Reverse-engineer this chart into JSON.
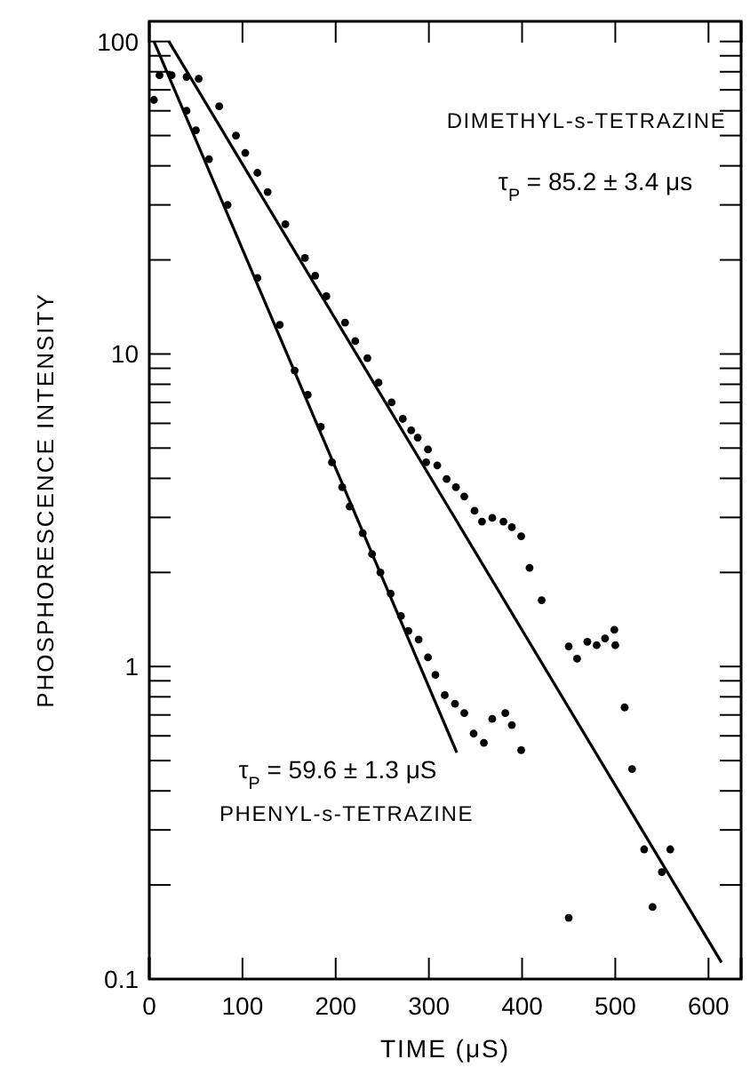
{
  "chart_data": {
    "type": "scatter",
    "xlabel": "TIME  (μS)",
    "ylabel": "PHOSPHORESCENCE INTENSITY",
    "log": "y",
    "grid": false,
    "legend": "top right",
    "marker": "circle",
    "xlim": [
      0,
      635
    ],
    "ylim": [
      0.1,
      116
    ],
    "xticks": [
      0,
      100,
      200,
      300,
      400,
      500,
      600
    ],
    "yticks": [
      {
        "value": 0.1,
        "label": "0.1"
      },
      {
        "value": 0.2,
        "label": null
      },
      {
        "value": 0.3,
        "label": null
      },
      {
        "value": 0.4,
        "label": null
      },
      {
        "value": 0.5,
        "label": null
      },
      {
        "value": 0.6,
        "label": null
      },
      {
        "value": 0.7,
        "label": null
      },
      {
        "value": 0.8,
        "label": null
      },
      {
        "value": 0.9,
        "label": null
      },
      1,
      {
        "value": 2,
        "label": null
      },
      {
        "value": 3,
        "label": null
      },
      {
        "value": 4,
        "label": null
      },
      {
        "value": 5,
        "label": null
      },
      {
        "value": 6,
        "label": null
      },
      {
        "value": 7,
        "label": null
      },
      {
        "value": 8,
        "label": null
      },
      {
        "value": 9,
        "label": null
      },
      10,
      {
        "value": 20,
        "label": null
      },
      {
        "value": 30,
        "label": null
      },
      {
        "value": 40,
        "label": null
      },
      {
        "value": 50,
        "label": null
      },
      {
        "value": 60,
        "label": null
      },
      {
        "value": 70,
        "label": null
      },
      {
        "value": 80,
        "label": null
      },
      {
        "value": 90,
        "label": null
      },
      100
    ],
    "annotations": [
      "τ$_{P}$ = 85.2 ± 3.4 μs",
      "τ$_{P}$ = 59.6 ± 1.3 μS"
    ],
    "series": [
      {
        "name": "DIMETHYL-s-TETRAZINE",
        "color": "#000000",
        "x": [
          11,
          24,
          40,
          53,
          75,
          93,
          103,
          116,
          127,
          146,
          167,
          178,
          190,
          210,
          221,
          234,
          246,
          260,
          272,
          281,
          288,
          297,
          299,
          309,
          319,
          329,
          338,
          349,
          357,
          368,
          380,
          389,
          399,
          408,
          421,
          450,
          459,
          470,
          480,
          489,
          499,
          500,
          510,
          518,
          531,
          540,
          550,
          559,
          450
        ],
        "values": [
          78,
          78,
          77,
          76,
          62,
          50,
          44,
          38,
          33,
          26,
          20.3,
          17.8,
          15.3,
          12.6,
          11,
          9.7,
          8.1,
          7,
          6.2,
          5.7,
          5.4,
          4.5,
          4.95,
          4.4,
          3.98,
          3.75,
          3.5,
          3.15,
          2.91,
          2.99,
          2.91,
          2.79,
          2.61,
          2.07,
          1.63,
          1.16,
          1.06,
          1.2,
          1.17,
          1.23,
          1.31,
          1.17,
          0.74,
          0.47,
          0.26,
          0.17,
          0.22,
          0.26,
          0.157
        ]
      },
      {
        "name": "PHENYL-s-TETRAZINE",
        "color": "#000000",
        "x": [
          5,
          40,
          50,
          64,
          84,
          116,
          140,
          156,
          170,
          184,
          196,
          207,
          215,
          229,
          239,
          248,
          259,
          270,
          278,
          289,
          299,
          307,
          317,
          328,
          338,
          348,
          359,
          368,
          382,
          389,
          399
        ],
        "values": [
          65,
          60,
          52,
          42,
          30,
          17.5,
          12.4,
          8.85,
          7.4,
          5.85,
          4.5,
          3.75,
          3.25,
          2.67,
          2.29,
          2,
          1.71,
          1.45,
          1.3,
          1.22,
          1.07,
          0.94,
          0.81,
          0.76,
          0.71,
          0.61,
          0.57,
          0.68,
          0.71,
          0.65,
          0.54
        ]
      },
      {
        "type": "line",
        "color": "#000000",
        "marker": "none",
        "line_style": "solid",
        "x": [
          21,
          614
        ],
        "values": [
          100,
          0.113
        ]
      },
      {
        "type": "line",
        "color": "#000000",
        "marker": "none",
        "line_style": "solid",
        "x": [
          5,
          330
        ],
        "values": [
          100,
          0.53
        ]
      }
    ]
  }
}
